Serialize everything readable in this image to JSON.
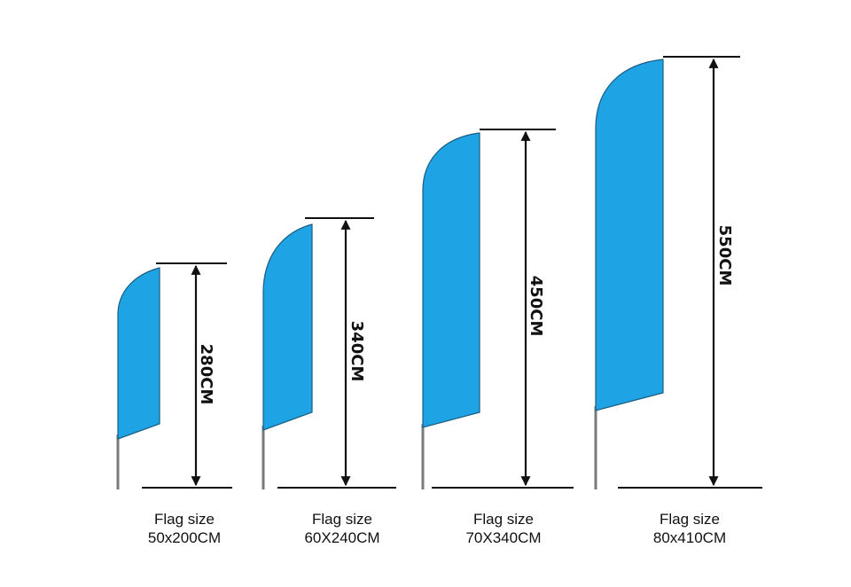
{
  "flags": [
    {
      "height": "280CM",
      "caption": "Flag size",
      "size": "50x200CM"
    },
    {
      "height": "340CM",
      "caption": "Flag size",
      "size": "60X240CM"
    },
    {
      "height": "450CM",
      "caption": "Flag size",
      "size": "70X340CM"
    },
    {
      "height": "550CM",
      "caption": "Flag size",
      "size": "80x410CM"
    }
  ]
}
